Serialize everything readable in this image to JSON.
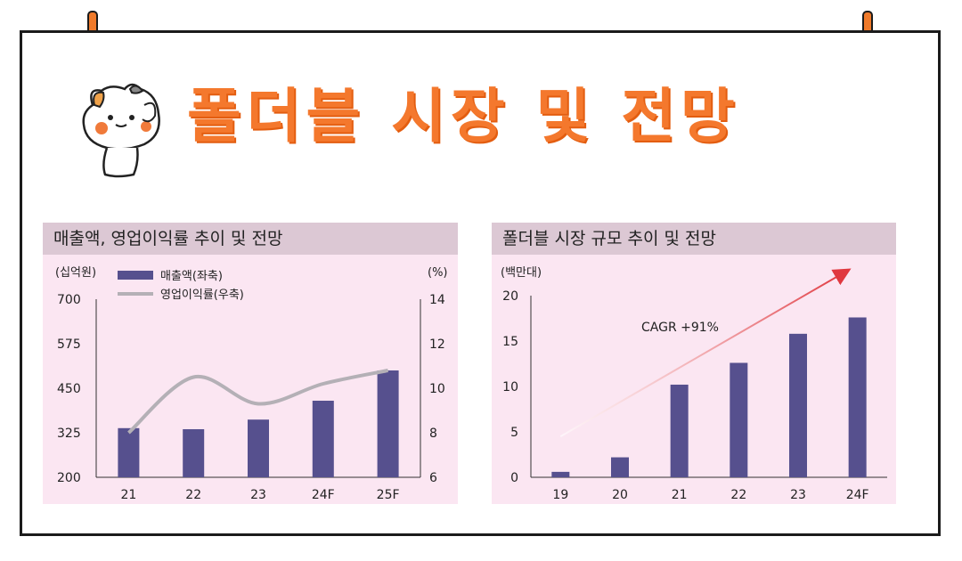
{
  "headline": "폴더블 시장 및 전망",
  "colors": {
    "accent": "#f4782d",
    "bar": "#56508e",
    "line": "#b4b0b6",
    "arrow": "#e0383f",
    "panel_bg": "#fbe6f2",
    "panel_title_bg": "#dcc8d4"
  },
  "chart_data": [
    {
      "type": "bar",
      "title": "매출액, 영업이익률 추이 및 전망",
      "categories": [
        "21",
        "22",
        "23",
        "24F",
        "25F"
      ],
      "left_unit": "(십억원)",
      "right_unit": "(%)",
      "ylim": [
        200,
        700
      ],
      "yticks": [
        "700",
        "575",
        "450",
        "325",
        "200"
      ],
      "y2lim": [
        6,
        14
      ],
      "y2ticks": [
        "14",
        "12",
        "10",
        "8",
        "6"
      ],
      "legend_position": "top-left",
      "series": [
        {
          "name": "매출액(좌축)",
          "type": "bar",
          "axis": "left",
          "values": [
            338,
            335,
            362,
            415,
            500
          ]
        },
        {
          "name": "영업이익률(우축)",
          "type": "line",
          "axis": "right",
          "values": [
            8.0,
            10.5,
            9.3,
            10.2,
            10.8
          ]
        }
      ]
    },
    {
      "type": "bar",
      "title": "폴더블 시장 규모 추이 및 전망",
      "categories": [
        "19",
        "20",
        "21",
        "22",
        "23",
        "24F"
      ],
      "left_unit": "(백만대)",
      "ylim": [
        0,
        20
      ],
      "yticks": [
        "20",
        "15",
        "10",
        "5",
        "0"
      ],
      "annotation": "CAGR +91%",
      "series": [
        {
          "type": "bar",
          "values": [
            0.6,
            2.2,
            10.2,
            12.6,
            15.8,
            17.6
          ]
        }
      ]
    }
  ]
}
